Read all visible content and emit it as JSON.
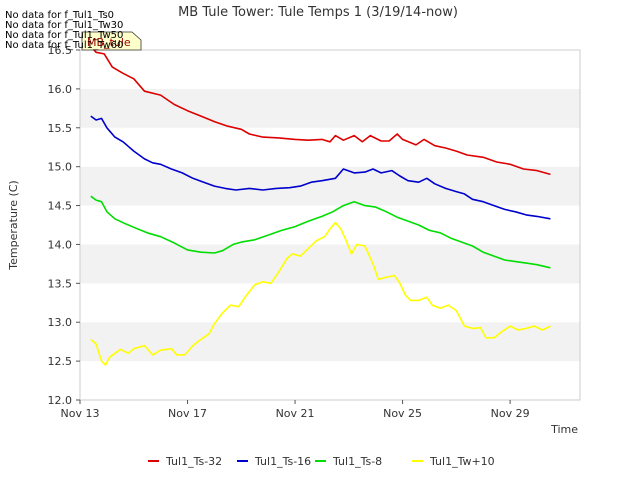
{
  "chart_data": {
    "type": "line",
    "title": "MB Tule Tower: Tule Temps 1 (3/19/14-now)",
    "xlabel": "Time",
    "ylabel": "Temperature (C)",
    "xlim": [
      0,
      18.6
    ],
    "ylim": [
      12.0,
      16.5
    ],
    "x_ticks": [
      {
        "x": 0,
        "label": "Nov 13"
      },
      {
        "x": 4,
        "label": "Nov 17"
      },
      {
        "x": 8,
        "label": "Nov 21"
      },
      {
        "x": 12,
        "label": "Nov 25"
      },
      {
        "x": 16,
        "label": "Nov 29"
      }
    ],
    "y_ticks": [
      "12.0",
      "12.5",
      "13.0",
      "13.5",
      "14.0",
      "14.5",
      "15.0",
      "15.5",
      "16.0",
      "16.5"
    ],
    "series": [
      {
        "name": "Tul1_Ts-32",
        "color": "#dd0000",
        "points": [
          [
            0.4,
            16.55
          ],
          [
            0.6,
            16.47
          ],
          [
            0.9,
            16.45
          ],
          [
            1.2,
            16.28
          ],
          [
            1.6,
            16.2
          ],
          [
            2.0,
            16.13
          ],
          [
            2.4,
            15.97
          ],
          [
            3.0,
            15.92
          ],
          [
            3.5,
            15.8
          ],
          [
            4.0,
            15.72
          ],
          [
            4.5,
            15.65
          ],
          [
            5.0,
            15.58
          ],
          [
            5.5,
            15.52
          ],
          [
            6.0,
            15.48
          ],
          [
            6.3,
            15.42
          ],
          [
            6.8,
            15.38
          ],
          [
            7.4,
            15.37
          ],
          [
            8.0,
            15.35
          ],
          [
            8.5,
            15.34
          ],
          [
            9.0,
            15.35
          ],
          [
            9.3,
            15.32
          ],
          [
            9.5,
            15.4
          ],
          [
            9.8,
            15.34
          ],
          [
            10.2,
            15.4
          ],
          [
            10.5,
            15.32
          ],
          [
            10.8,
            15.4
          ],
          [
            11.2,
            15.33
          ],
          [
            11.5,
            15.33
          ],
          [
            11.8,
            15.42
          ],
          [
            12.0,
            15.35
          ],
          [
            12.5,
            15.28
          ],
          [
            12.8,
            15.35
          ],
          [
            13.2,
            15.27
          ],
          [
            13.6,
            15.24
          ],
          [
            14.0,
            15.2
          ],
          [
            14.4,
            15.15
          ],
          [
            15.0,
            15.12
          ],
          [
            15.5,
            15.06
          ],
          [
            16.0,
            15.03
          ],
          [
            16.5,
            14.97
          ],
          [
            17.0,
            14.95
          ],
          [
            17.5,
            14.9
          ]
        ]
      },
      {
        "name": "Tul1_Ts-16",
        "color": "#0000cc",
        "points": [
          [
            0.4,
            15.65
          ],
          [
            0.6,
            15.6
          ],
          [
            0.8,
            15.62
          ],
          [
            1.0,
            15.5
          ],
          [
            1.3,
            15.38
          ],
          [
            1.6,
            15.32
          ],
          [
            2.0,
            15.2
          ],
          [
            2.4,
            15.1
          ],
          [
            2.7,
            15.05
          ],
          [
            3.0,
            15.03
          ],
          [
            3.4,
            14.97
          ],
          [
            3.8,
            14.92
          ],
          [
            4.2,
            14.85
          ],
          [
            4.6,
            14.8
          ],
          [
            5.0,
            14.75
          ],
          [
            5.4,
            14.72
          ],
          [
            5.8,
            14.7
          ],
          [
            6.3,
            14.72
          ],
          [
            6.8,
            14.7
          ],
          [
            7.3,
            14.72
          ],
          [
            7.8,
            14.73
          ],
          [
            8.2,
            14.75
          ],
          [
            8.6,
            14.8
          ],
          [
            9.0,
            14.82
          ],
          [
            9.5,
            14.85
          ],
          [
            9.8,
            14.97
          ],
          [
            10.2,
            14.92
          ],
          [
            10.6,
            14.93
          ],
          [
            10.9,
            14.97
          ],
          [
            11.2,
            14.92
          ],
          [
            11.6,
            14.95
          ],
          [
            11.9,
            14.88
          ],
          [
            12.2,
            14.82
          ],
          [
            12.6,
            14.8
          ],
          [
            12.9,
            14.85
          ],
          [
            13.2,
            14.78
          ],
          [
            13.6,
            14.72
          ],
          [
            14.0,
            14.68
          ],
          [
            14.3,
            14.65
          ],
          [
            14.6,
            14.58
          ],
          [
            15.0,
            14.55
          ],
          [
            15.4,
            14.5
          ],
          [
            15.8,
            14.45
          ],
          [
            16.2,
            14.42
          ],
          [
            16.6,
            14.38
          ],
          [
            17.0,
            14.36
          ],
          [
            17.5,
            14.33
          ]
        ]
      },
      {
        "name": "Tul1_Ts-8",
        "color": "#00dd00",
        "points": [
          [
            0.4,
            14.62
          ],
          [
            0.6,
            14.57
          ],
          [
            0.8,
            14.55
          ],
          [
            1.0,
            14.42
          ],
          [
            1.3,
            14.33
          ],
          [
            1.6,
            14.28
          ],
          [
            2.0,
            14.22
          ],
          [
            2.5,
            14.15
          ],
          [
            3.0,
            14.1
          ],
          [
            3.5,
            14.02
          ],
          [
            4.0,
            13.93
          ],
          [
            4.5,
            13.9
          ],
          [
            5.0,
            13.89
          ],
          [
            5.3,
            13.92
          ],
          [
            5.7,
            14.0
          ],
          [
            6.0,
            14.03
          ],
          [
            6.5,
            14.06
          ],
          [
            7.0,
            14.12
          ],
          [
            7.5,
            14.18
          ],
          [
            8.0,
            14.23
          ],
          [
            8.5,
            14.3
          ],
          [
            9.0,
            14.36
          ],
          [
            9.4,
            14.42
          ],
          [
            9.8,
            14.5
          ],
          [
            10.2,
            14.55
          ],
          [
            10.6,
            14.5
          ],
          [
            11.0,
            14.48
          ],
          [
            11.4,
            14.42
          ],
          [
            11.8,
            14.35
          ],
          [
            12.2,
            14.3
          ],
          [
            12.6,
            14.25
          ],
          [
            13.0,
            14.18
          ],
          [
            13.4,
            14.15
          ],
          [
            13.8,
            14.08
          ],
          [
            14.2,
            14.03
          ],
          [
            14.6,
            13.98
          ],
          [
            15.0,
            13.9
          ],
          [
            15.4,
            13.85
          ],
          [
            15.8,
            13.8
          ],
          [
            16.2,
            13.78
          ],
          [
            16.6,
            13.76
          ],
          [
            17.0,
            13.74
          ],
          [
            17.5,
            13.7
          ]
        ]
      },
      {
        "name": "Tul1_Tw+10",
        "color": "#ffff00",
        "points": [
          [
            0.4,
            12.78
          ],
          [
            0.6,
            12.72
          ],
          [
            0.8,
            12.5
          ],
          [
            0.95,
            12.45
          ],
          [
            1.1,
            12.55
          ],
          [
            1.3,
            12.6
          ],
          [
            1.5,
            12.65
          ],
          [
            1.8,
            12.6
          ],
          [
            2.0,
            12.66
          ],
          [
            2.4,
            12.7
          ],
          [
            2.7,
            12.58
          ],
          [
            3.0,
            12.64
          ],
          [
            3.4,
            12.66
          ],
          [
            3.6,
            12.58
          ],
          [
            3.9,
            12.58
          ],
          [
            4.2,
            12.7
          ],
          [
            4.5,
            12.78
          ],
          [
            4.8,
            12.85
          ],
          [
            5.0,
            12.98
          ],
          [
            5.3,
            13.12
          ],
          [
            5.6,
            13.22
          ],
          [
            5.9,
            13.2
          ],
          [
            6.2,
            13.35
          ],
          [
            6.5,
            13.48
          ],
          [
            6.8,
            13.52
          ],
          [
            7.1,
            13.5
          ],
          [
            7.4,
            13.65
          ],
          [
            7.7,
            13.82
          ],
          [
            7.9,
            13.88
          ],
          [
            8.2,
            13.85
          ],
          [
            8.5,
            13.95
          ],
          [
            8.8,
            14.05
          ],
          [
            9.1,
            14.1
          ],
          [
            9.3,
            14.2
          ],
          [
            9.5,
            14.28
          ],
          [
            9.7,
            14.2
          ],
          [
            9.9,
            14.05
          ],
          [
            10.1,
            13.88
          ],
          [
            10.3,
            14.0
          ],
          [
            10.6,
            13.98
          ],
          [
            10.9,
            13.75
          ],
          [
            11.1,
            13.55
          ],
          [
            11.4,
            13.58
          ],
          [
            11.7,
            13.6
          ],
          [
            11.9,
            13.5
          ],
          [
            12.1,
            13.35
          ],
          [
            12.3,
            13.28
          ],
          [
            12.6,
            13.28
          ],
          [
            12.9,
            13.32
          ],
          [
            13.1,
            13.22
          ],
          [
            13.4,
            13.18
          ],
          [
            13.7,
            13.22
          ],
          [
            14.0,
            13.15
          ],
          [
            14.3,
            12.95
          ],
          [
            14.6,
            12.92
          ],
          [
            14.9,
            12.93
          ],
          [
            15.1,
            12.8
          ],
          [
            15.4,
            12.8
          ],
          [
            15.7,
            12.88
          ],
          [
            16.0,
            12.95
          ],
          [
            16.3,
            12.9
          ],
          [
            16.6,
            12.92
          ],
          [
            16.9,
            12.95
          ],
          [
            17.2,
            12.9
          ],
          [
            17.5,
            12.95
          ]
        ]
      }
    ]
  },
  "no_data_messages": [
    "No data for f_Tul1_Ts0",
    "No data for f_Tul1_Tw30",
    "No data for f_Tul1_Tw50",
    "No data for f_Tul1_Tw60"
  ],
  "tooltip_label": "MB_tule"
}
